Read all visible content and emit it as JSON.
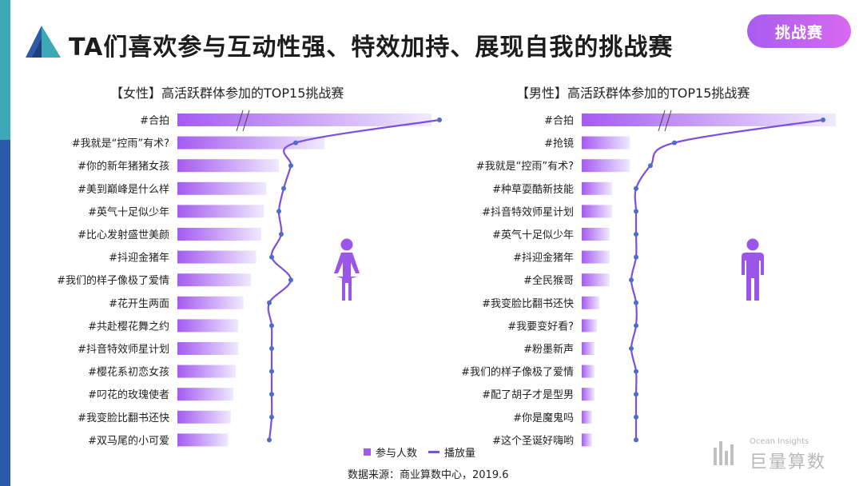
{
  "header": {
    "title": "TA们喜欢参与互动性强、特效加持、展现自我的挑战赛",
    "tag_button": "挑战赛"
  },
  "legend": {
    "bar_label": "参与人数",
    "line_label": "播放量"
  },
  "footer": {
    "source": "数据来源：商业算数中心，2019.6"
  },
  "brand": {
    "small": "Ocean Insights",
    "name": "巨量算数"
  },
  "colors": {
    "bar_start": "#a55bf0",
    "bar_end": "#f0eaff",
    "line": "#7b4fe0",
    "icon": "#9b55e8",
    "tag": "#b45ff0"
  },
  "chart_data": [
    {
      "type": "bar",
      "title": "【女性】高活跃群体参加的TOP15挑战赛",
      "categories": [
        "#合拍",
        "#我就是“控雨”有术?",
        "#你的新年猪猪女孩",
        "#美到巅峰是什么样",
        "#英气十足似少年",
        "#比心发射盛世美颜",
        "#抖迎金猪年",
        "#我们的样子像极了爱情",
        "#花开生两面",
        "#共赴樱花舞之约",
        "#抖音特效师星计划",
        "#樱花系初恋女孩",
        "#叼花的玫瑰使者",
        "#我变脸比翻书还快",
        "#双马尾的小可爱"
      ],
      "series": [
        {
          "name": "参与人数",
          "values": [
            100,
            58,
            40,
            35,
            34,
            33,
            31,
            29,
            26,
            24,
            24,
            23,
            22,
            21,
            20
          ]
        },
        {
          "name": "播放量",
          "values": [
            100,
            40,
            38,
            35,
            33,
            34,
            30,
            38,
            29,
            30,
            30,
            30,
            30,
            30,
            29
          ]
        }
      ],
      "axis_break": true,
      "icon": "female-icon"
    },
    {
      "type": "bar",
      "title": "【男性】高活跃群体参加的TOP15挑战赛",
      "categories": [
        "#合拍",
        "#抢镜",
        "#我就是“控雨”有术?",
        "#种草耍酷新技能",
        "#抖音特效师星计划",
        "#英气十足似少年",
        "#抖迎金猪年",
        "#全民猴哥",
        "#我变脸比翻书还快",
        "#我要变好看?",
        "#粉墨新声",
        "#我们的样子像极了爱情",
        "#配了胡子才是型男",
        "#你是魔鬼吗",
        "#这个圣诞好嗨哟"
      ],
      "series": [
        {
          "name": "参与人数",
          "values": [
            100,
            19,
            19,
            12,
            12,
            11,
            11,
            11,
            7,
            6,
            5,
            5,
            5,
            4,
            4
          ]
        },
        {
          "name": "播放量",
          "values": [
            100,
            38,
            28,
            22,
            22,
            22,
            22,
            20,
            22,
            22,
            20,
            22,
            22,
            22,
            22
          ]
        }
      ],
      "axis_break": true,
      "icon": "male-icon"
    }
  ]
}
